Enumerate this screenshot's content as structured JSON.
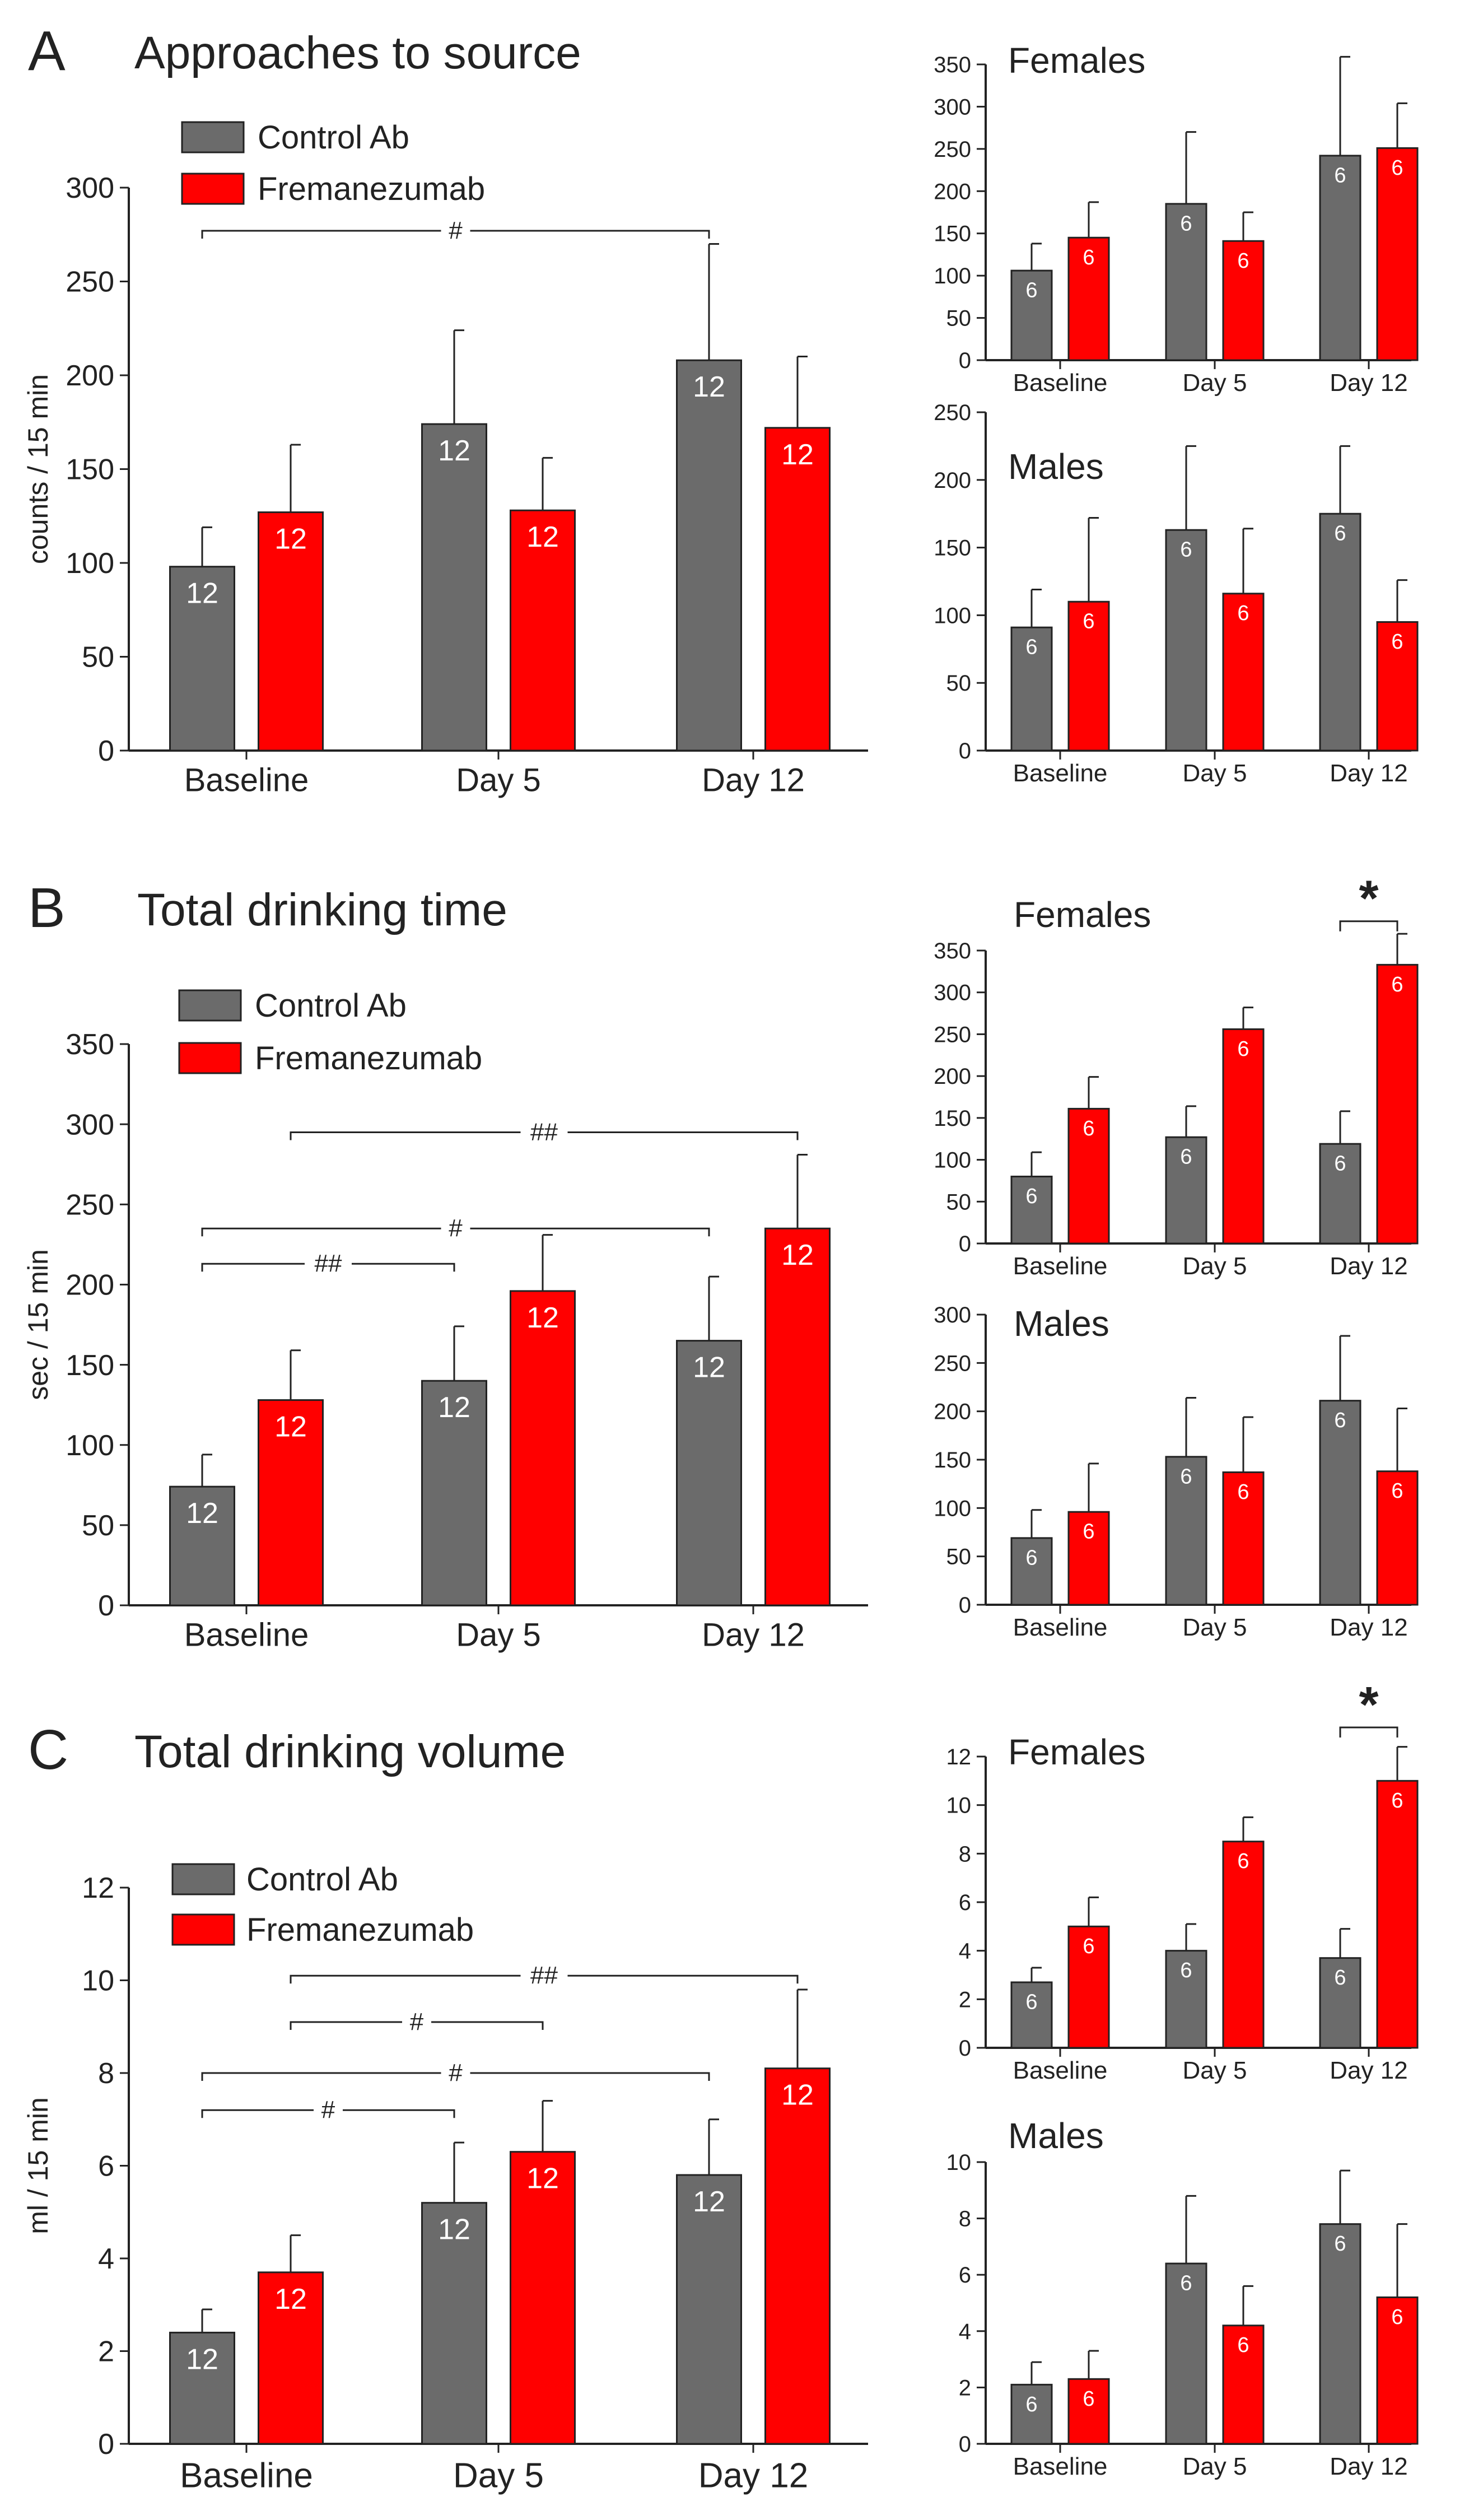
{
  "colors": {
    "control": "#6b6b6b",
    "fremanezumab": "#ff0000",
    "axis": "#222222",
    "bar_label": "#ffffff"
  },
  "legend": {
    "control": "Control Ab",
    "fremanezumab": "Fremanezumab"
  },
  "panels": [
    {
      "id": "A",
      "letter": "A",
      "title": "Approaches to source"
    },
    {
      "id": "B",
      "letter": "B",
      "title": "Total drinking time"
    },
    {
      "id": "C",
      "letter": "C",
      "title": "Total drinking volume"
    }
  ],
  "chart_data": [
    {
      "id": "A-main",
      "type": "bar",
      "panel": "A",
      "ylabel": "counts / 15 min",
      "ylim": [
        0,
        300
      ],
      "yticks": [
        0,
        50,
        100,
        150,
        200,
        250,
        300
      ],
      "categories": [
        "Baseline",
        "Day 5",
        "Day 12"
      ],
      "series": [
        {
          "name": "Control Ab",
          "values": [
            98,
            174,
            208
          ],
          "errors": [
            21,
            50,
            62
          ],
          "n": [
            "12",
            "12",
            "12"
          ]
        },
        {
          "name": "Fremanezumab",
          "values": [
            127,
            128,
            172
          ],
          "errors": [
            36,
            28,
            38
          ],
          "n": [
            "12",
            "12",
            "12"
          ]
        }
      ],
      "annotations": [
        {
          "label": "#",
          "from": "0:0",
          "to": "2:0",
          "level": 277
        }
      ]
    },
    {
      "id": "A-females",
      "type": "bar",
      "panel": "A",
      "title": "Females",
      "ylim": [
        0,
        350
      ],
      "yticks": [
        0,
        50,
        100,
        150,
        200,
        250,
        300,
        350
      ],
      "categories": [
        "Baseline",
        "Day 5",
        "Day 12"
      ],
      "series": [
        {
          "name": "Control Ab",
          "values": [
            106,
            185,
            242
          ],
          "errors": [
            32,
            85,
            117
          ],
          "n": [
            "6",
            "6",
            "6"
          ]
        },
        {
          "name": "Fremanezumab",
          "values": [
            145,
            141,
            251
          ],
          "errors": [
            42,
            34,
            53
          ],
          "n": [
            "6",
            "6",
            "6"
          ]
        }
      ],
      "annotations": []
    },
    {
      "id": "A-males",
      "type": "bar",
      "panel": "A",
      "title": "Males",
      "ylim": [
        0,
        250
      ],
      "yticks": [
        0,
        50,
        100,
        150,
        200,
        250
      ],
      "categories": [
        "Baseline",
        "Day 5",
        "Day 12"
      ],
      "series": [
        {
          "name": "Control Ab",
          "values": [
            91,
            163,
            175
          ],
          "errors": [
            28,
            62,
            50
          ],
          "n": [
            "6",
            "6",
            "6"
          ]
        },
        {
          "name": "Fremanezumab",
          "values": [
            110,
            116,
            95
          ],
          "errors": [
            62,
            48,
            31
          ],
          "n": [
            "6",
            "6",
            "6"
          ]
        }
      ],
      "annotations": []
    },
    {
      "id": "B-main",
      "type": "bar",
      "panel": "B",
      "ylabel": "sec / 15 min",
      "ylim": [
        0,
        350
      ],
      "yticks": [
        0,
        50,
        100,
        150,
        200,
        250,
        300,
        350
      ],
      "categories": [
        "Baseline",
        "Day 5",
        "Day 12"
      ],
      "series": [
        {
          "name": "Control Ab",
          "values": [
            74,
            140,
            165
          ],
          "errors": [
            20,
            34,
            40
          ],
          "n": [
            "12",
            "12",
            "12"
          ]
        },
        {
          "name": "Fremanezumab",
          "values": [
            128,
            196,
            235
          ],
          "errors": [
            31,
            35,
            46
          ],
          "n": [
            "12",
            "12",
            "12"
          ]
        }
      ],
      "annotations": [
        {
          "label": "##",
          "from": "0:1",
          "to": "2:1",
          "level": 295
        },
        {
          "label": "#",
          "from": "0:0",
          "to": "2:0",
          "level": 235
        },
        {
          "label": "##",
          "from": "0:0",
          "to": "1:0",
          "level": 213
        }
      ]
    },
    {
      "id": "B-females",
      "type": "bar",
      "panel": "B",
      "title": "Females",
      "ylim": [
        0,
        350
      ],
      "yticks": [
        0,
        50,
        100,
        150,
        200,
        250,
        300,
        350
      ],
      "categories": [
        "Baseline",
        "Day 5",
        "Day 12"
      ],
      "series": [
        {
          "name": "Control Ab",
          "values": [
            80,
            127,
            119
          ],
          "errors": [
            29,
            37,
            39
          ],
          "n": [
            "6",
            "6",
            "6"
          ]
        },
        {
          "name": "Fremanezumab",
          "values": [
            161,
            256,
            333
          ],
          "errors": [
            38,
            26,
            37
          ],
          "n": [
            "6",
            "6",
            "6"
          ]
        }
      ],
      "annotations": [
        {
          "label": "*",
          "from": "2:0",
          "to": "2:1",
          "level": 385,
          "big": true
        }
      ]
    },
    {
      "id": "B-males",
      "type": "bar",
      "panel": "B",
      "title": "Males",
      "ylim": [
        0,
        300
      ],
      "yticks": [
        0,
        50,
        100,
        150,
        200,
        250,
        300
      ],
      "categories": [
        "Baseline",
        "Day 5",
        "Day 12"
      ],
      "series": [
        {
          "name": "Control Ab",
          "values": [
            69,
            153,
            211
          ],
          "errors": [
            29,
            61,
            67
          ],
          "n": [
            "6",
            "6",
            "6"
          ]
        },
        {
          "name": "Fremanezumab",
          "values": [
            96,
            137,
            138
          ],
          "errors": [
            50,
            57,
            65
          ],
          "n": [
            "6",
            "6",
            "6"
          ]
        }
      ],
      "annotations": []
    },
    {
      "id": "C-main",
      "type": "bar",
      "panel": "C",
      "ylabel": "ml / 15 min",
      "ylim": [
        0,
        12
      ],
      "yticks": [
        0,
        2,
        4,
        6,
        8,
        10,
        12
      ],
      "categories": [
        "Baseline",
        "Day 5",
        "Day 12"
      ],
      "series": [
        {
          "name": "Control Ab",
          "values": [
            2.4,
            5.2,
            5.8
          ],
          "errors": [
            0.5,
            1.3,
            1.2
          ],
          "n": [
            "12",
            "12",
            "12"
          ]
        },
        {
          "name": "Fremanezumab",
          "values": [
            3.7,
            6.3,
            8.1
          ],
          "errors": [
            0.8,
            1.1,
            1.7
          ],
          "n": [
            "12",
            "12",
            "12"
          ]
        }
      ],
      "annotations": [
        {
          "label": "##",
          "from": "0:1",
          "to": "2:1",
          "level": 10.1
        },
        {
          "label": "#",
          "from": "0:1",
          "to": "1:1",
          "level": 9.1
        },
        {
          "label": "#",
          "from": "0:0",
          "to": "2:0",
          "level": 8.0
        },
        {
          "label": "#",
          "from": "0:0",
          "to": "1:0",
          "level": 7.2
        }
      ]
    },
    {
      "id": "C-females",
      "type": "bar",
      "panel": "C",
      "title": "Females",
      "ylim": [
        0,
        12
      ],
      "yticks": [
        0,
        2,
        4,
        6,
        8,
        10,
        12
      ],
      "categories": [
        "Baseline",
        "Day 5",
        "Day 12"
      ],
      "series": [
        {
          "name": "Control Ab",
          "values": [
            2.7,
            4.0,
            3.7
          ],
          "errors": [
            0.6,
            1.1,
            1.2
          ],
          "n": [
            "6",
            "6",
            "6"
          ]
        },
        {
          "name": "Fremanezumab",
          "values": [
            5.0,
            8.5,
            11.0
          ],
          "errors": [
            1.2,
            1.0,
            1.4
          ],
          "n": [
            "6",
            "6",
            "6"
          ]
        }
      ],
      "annotations": [
        {
          "label": "*",
          "from": "2:0",
          "to": "2:1",
          "level": 13.2,
          "big": true
        }
      ]
    },
    {
      "id": "C-males",
      "type": "bar",
      "panel": "C",
      "title": "Males",
      "ylim": [
        0,
        10
      ],
      "yticks": [
        0,
        2,
        4,
        6,
        8,
        10
      ],
      "categories": [
        "Baseline",
        "Day 5",
        "Day 12"
      ],
      "series": [
        {
          "name": "Control Ab",
          "values": [
            2.1,
            6.4,
            7.8
          ],
          "errors": [
            0.8,
            2.4,
            1.9
          ],
          "n": [
            "6",
            "6",
            "6"
          ]
        },
        {
          "name": "Fremanezumab",
          "values": [
            2.3,
            4.2,
            5.2
          ],
          "errors": [
            1.0,
            1.4,
            2.6
          ],
          "n": [
            "6",
            "6",
            "6"
          ]
        }
      ],
      "annotations": []
    }
  ]
}
